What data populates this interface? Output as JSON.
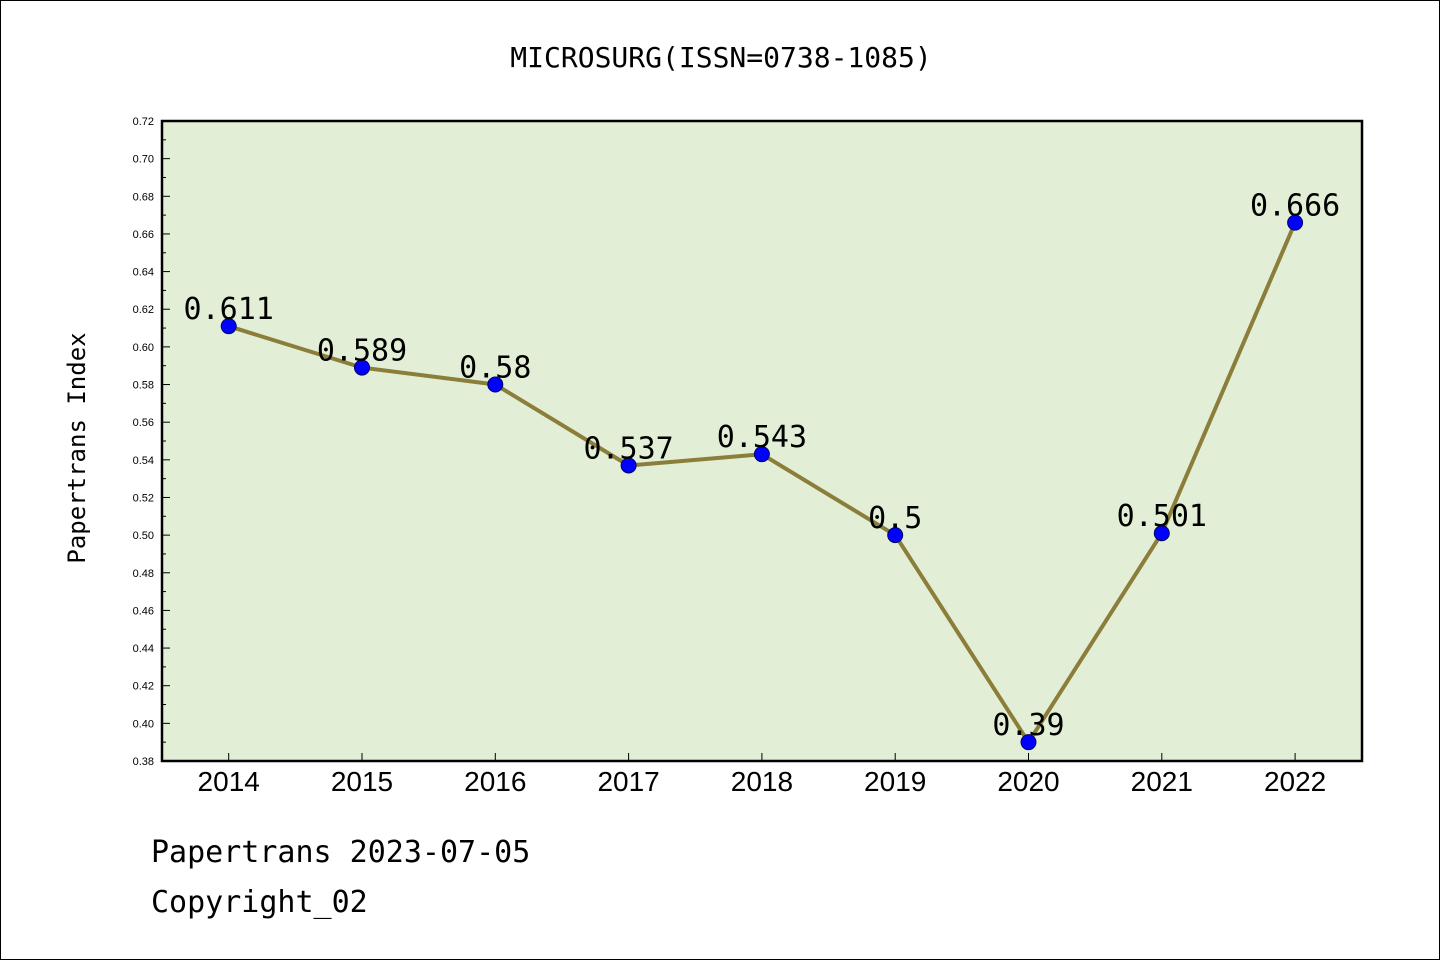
{
  "chart_data": {
    "type": "line",
    "title": "MICROSURG(ISSN=0738-1085)",
    "xlabel": "",
    "ylabel": "Papertrans Index",
    "categories": [
      "2014",
      "2015",
      "2016",
      "2017",
      "2018",
      "2019",
      "2020",
      "2021",
      "2022"
    ],
    "series": [
      {
        "values": [
          0.611,
          0.589,
          0.58,
          0.537,
          0.543,
          0.5,
          0.39,
          0.501,
          0.666
        ],
        "data_labels": [
          "0.611",
          "0.589",
          "0.58",
          "0.537",
          "0.543",
          "0.5",
          "0.39",
          "0.501",
          "0.666"
        ]
      }
    ],
    "ylim": [
      0.38,
      0.72
    ],
    "y_ticks": [
      "0.38",
      "0.40",
      "0.42",
      "0.44",
      "0.46",
      "0.48",
      "0.50",
      "0.52",
      "0.54",
      "0.56",
      "0.58",
      "0.60",
      "0.62",
      "0.64",
      "0.66",
      "0.68",
      "0.70",
      "0.72"
    ],
    "grid": false,
    "legend": "none",
    "colors": {
      "plot_background": "#e2efd6",
      "line": "#8b7d3a",
      "marker": "#0000ff"
    }
  },
  "footer": {
    "date_line": "Papertrans 2023-07-05",
    "copyright": "Copyright_02"
  }
}
